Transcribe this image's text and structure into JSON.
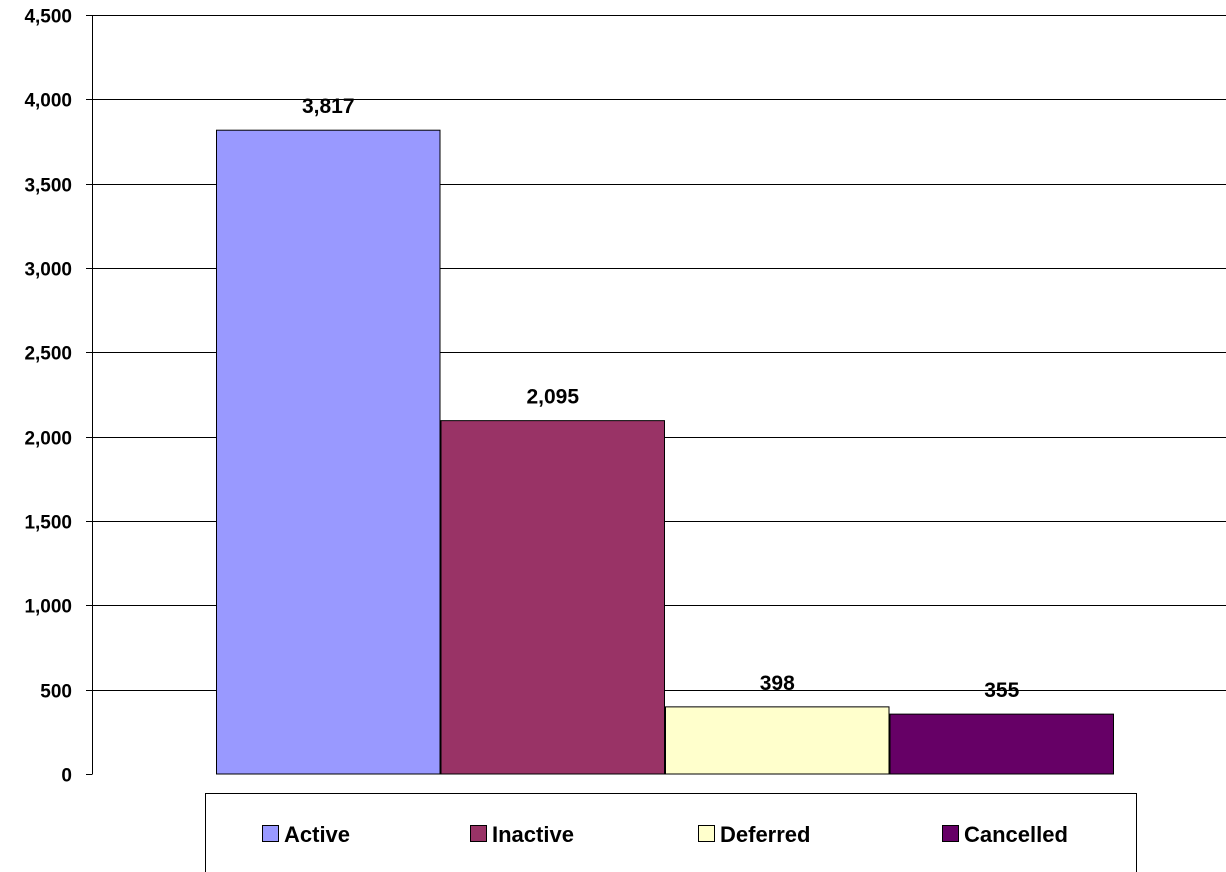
{
  "chart_data": {
    "type": "bar",
    "categories": [
      "Active",
      "Inactive",
      "Deferred",
      "Cancelled"
    ],
    "values": [
      3817,
      2095,
      398,
      355
    ],
    "data_labels": [
      "3,817",
      "2,095",
      "398",
      "355"
    ],
    "colors": [
      "#9999ff",
      "#993366",
      "#ffffcc",
      "#660066"
    ],
    "ylim": [
      0,
      4500
    ],
    "y_ticks": [
      0,
      500,
      1000,
      1500,
      2000,
      2500,
      3000,
      3500,
      4000,
      4500
    ],
    "y_tick_labels": [
      "0",
      "500",
      "1,000",
      "1,500",
      "2,000",
      "2,500",
      "3,000",
      "3,500",
      "4,000",
      "4,500"
    ],
    "grid": true,
    "legend": {
      "placement": "bottom",
      "entries": [
        "Active",
        "Inactive",
        "Deferred",
        "Cancelled"
      ]
    }
  }
}
